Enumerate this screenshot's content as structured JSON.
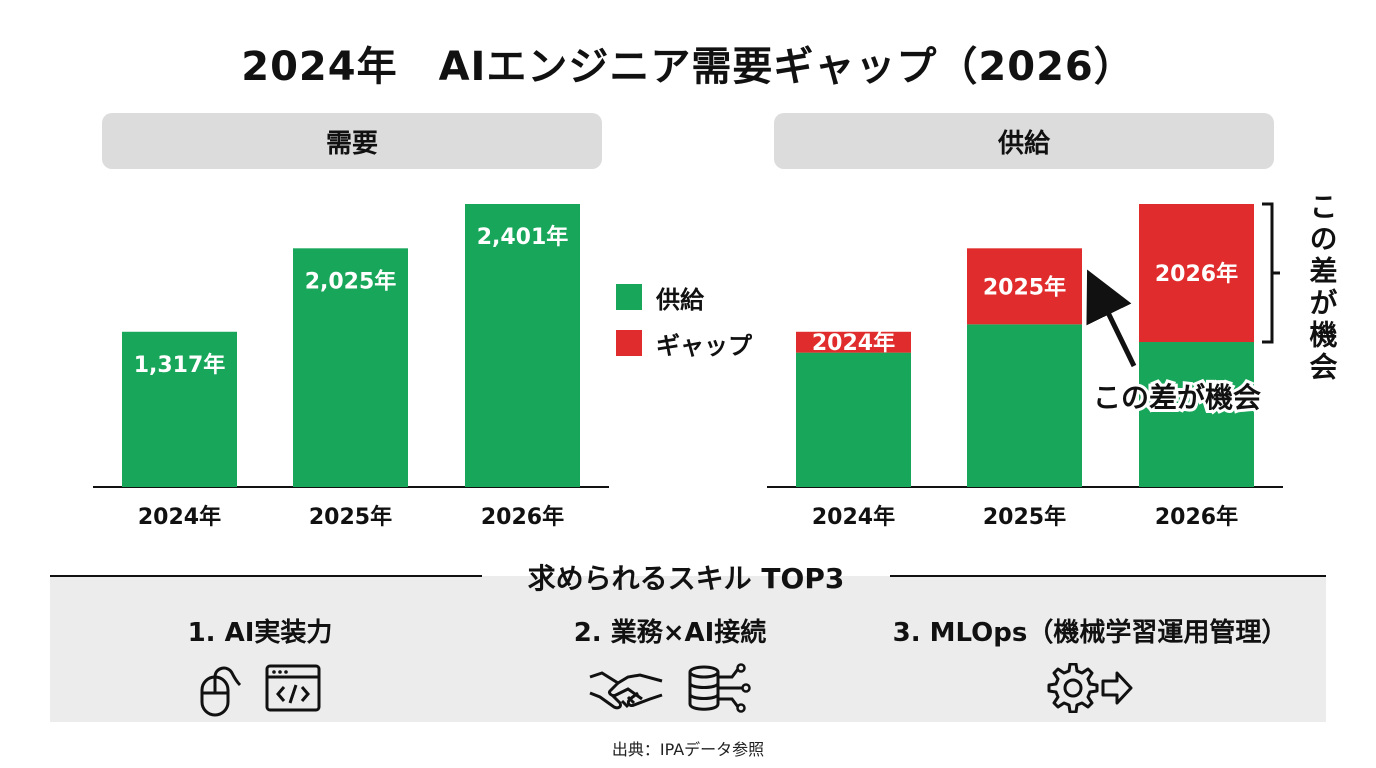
{
  "title": "2024年　AIエンジニア需要ギャップ（2026）",
  "panels": {
    "demand_header": "需要",
    "supply_header": "供給"
  },
  "colors": {
    "supply": "#17a65a",
    "gap": "#e02c2c",
    "header_bg": "#dcdcdc",
    "skills_bg": "#ececec"
  },
  "legend": [
    {
      "label": "供給",
      "color": "#17a65a"
    },
    {
      "label": "ギャップ",
      "color": "#e02c2c"
    }
  ],
  "chart_data": [
    {
      "type": "bar",
      "title": "需要",
      "categories": [
        "2024年",
        "2025年",
        "2026年"
      ],
      "values": [
        1317,
        2025,
        2401
      ],
      "value_labels": [
        "1,317年",
        "2,025年",
        "2,401年"
      ],
      "ylim": [
        0,
        2401
      ],
      "grid": false
    },
    {
      "type": "bar",
      "stacked": true,
      "title": "供給",
      "categories": [
        "2024年",
        "2025年",
        "2026年"
      ],
      "series": [
        {
          "name": "供給",
          "values": [
            1140,
            1380,
            1230
          ]
        },
        {
          "name": "ギャップ",
          "values": [
            177,
            645,
            1171
          ]
        }
      ],
      "value_labels": [
        "2024年",
        "2025年",
        "2026年"
      ],
      "ylim": [
        0,
        2401
      ],
      "legend_position": "left",
      "annotations": [
        "この差が機会",
        "この差が機会"
      ]
    }
  ],
  "skills": {
    "title": "求められるスキル TOP3",
    "items": [
      {
        "label": "1. AI実装力",
        "icons": [
          "mouse-icon",
          "code-window-icon"
        ]
      },
      {
        "label": "2. 業務×AI接続",
        "icons": [
          "handshake-icon",
          "database-network-icon"
        ]
      },
      {
        "label": "3. MLOps（機械学習運用管理）",
        "icons": [
          "gear-arrow-icon"
        ]
      }
    ]
  },
  "source": "出典：IPAデータ参照"
}
